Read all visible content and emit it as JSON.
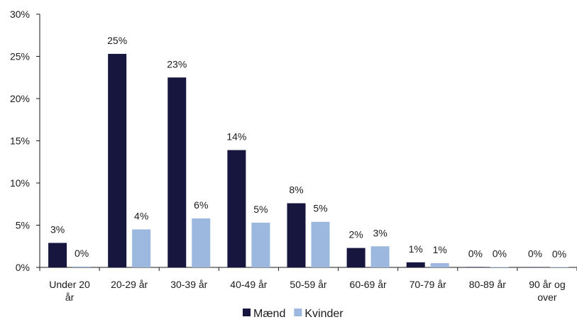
{
  "chart_data": {
    "type": "bar",
    "categories": [
      [
        "Under 20",
        "år"
      ],
      [
        "20-29 år"
      ],
      [
        "30-39 år"
      ],
      [
        "40-49 år"
      ],
      [
        "50-59 år"
      ],
      [
        "60-69 år"
      ],
      [
        "70-79 år"
      ],
      [
        "80-89 år"
      ],
      [
        "90 år og",
        "over"
      ]
    ],
    "series": [
      {
        "name": "Mænd",
        "color": "#16163f",
        "values": [
          2.9,
          25.3,
          22.5,
          13.9,
          7.6,
          2.3,
          0.6,
          0.05,
          0.03
        ],
        "labels": [
          "3%",
          "25%",
          "23%",
          "14%",
          "8%",
          "2%",
          "1%",
          "0%",
          "0%"
        ]
      },
      {
        "name": "Kvinder",
        "color": "#9cb8df",
        "values": [
          0.1,
          4.5,
          5.8,
          5.3,
          5.4,
          2.5,
          0.5,
          0.03,
          0.02
        ],
        "labels": [
          "0%",
          "4%",
          "6%",
          "5%",
          "5%",
          "3%",
          "1%",
          "0%",
          "0%"
        ]
      }
    ],
    "y_ticks": [
      "0%",
      "5%",
      "10%",
      "15%",
      "20%",
      "25%",
      "30%"
    ],
    "ylim": [
      0,
      30
    ],
    "grid": false,
    "legend_position": "bottom-center"
  }
}
